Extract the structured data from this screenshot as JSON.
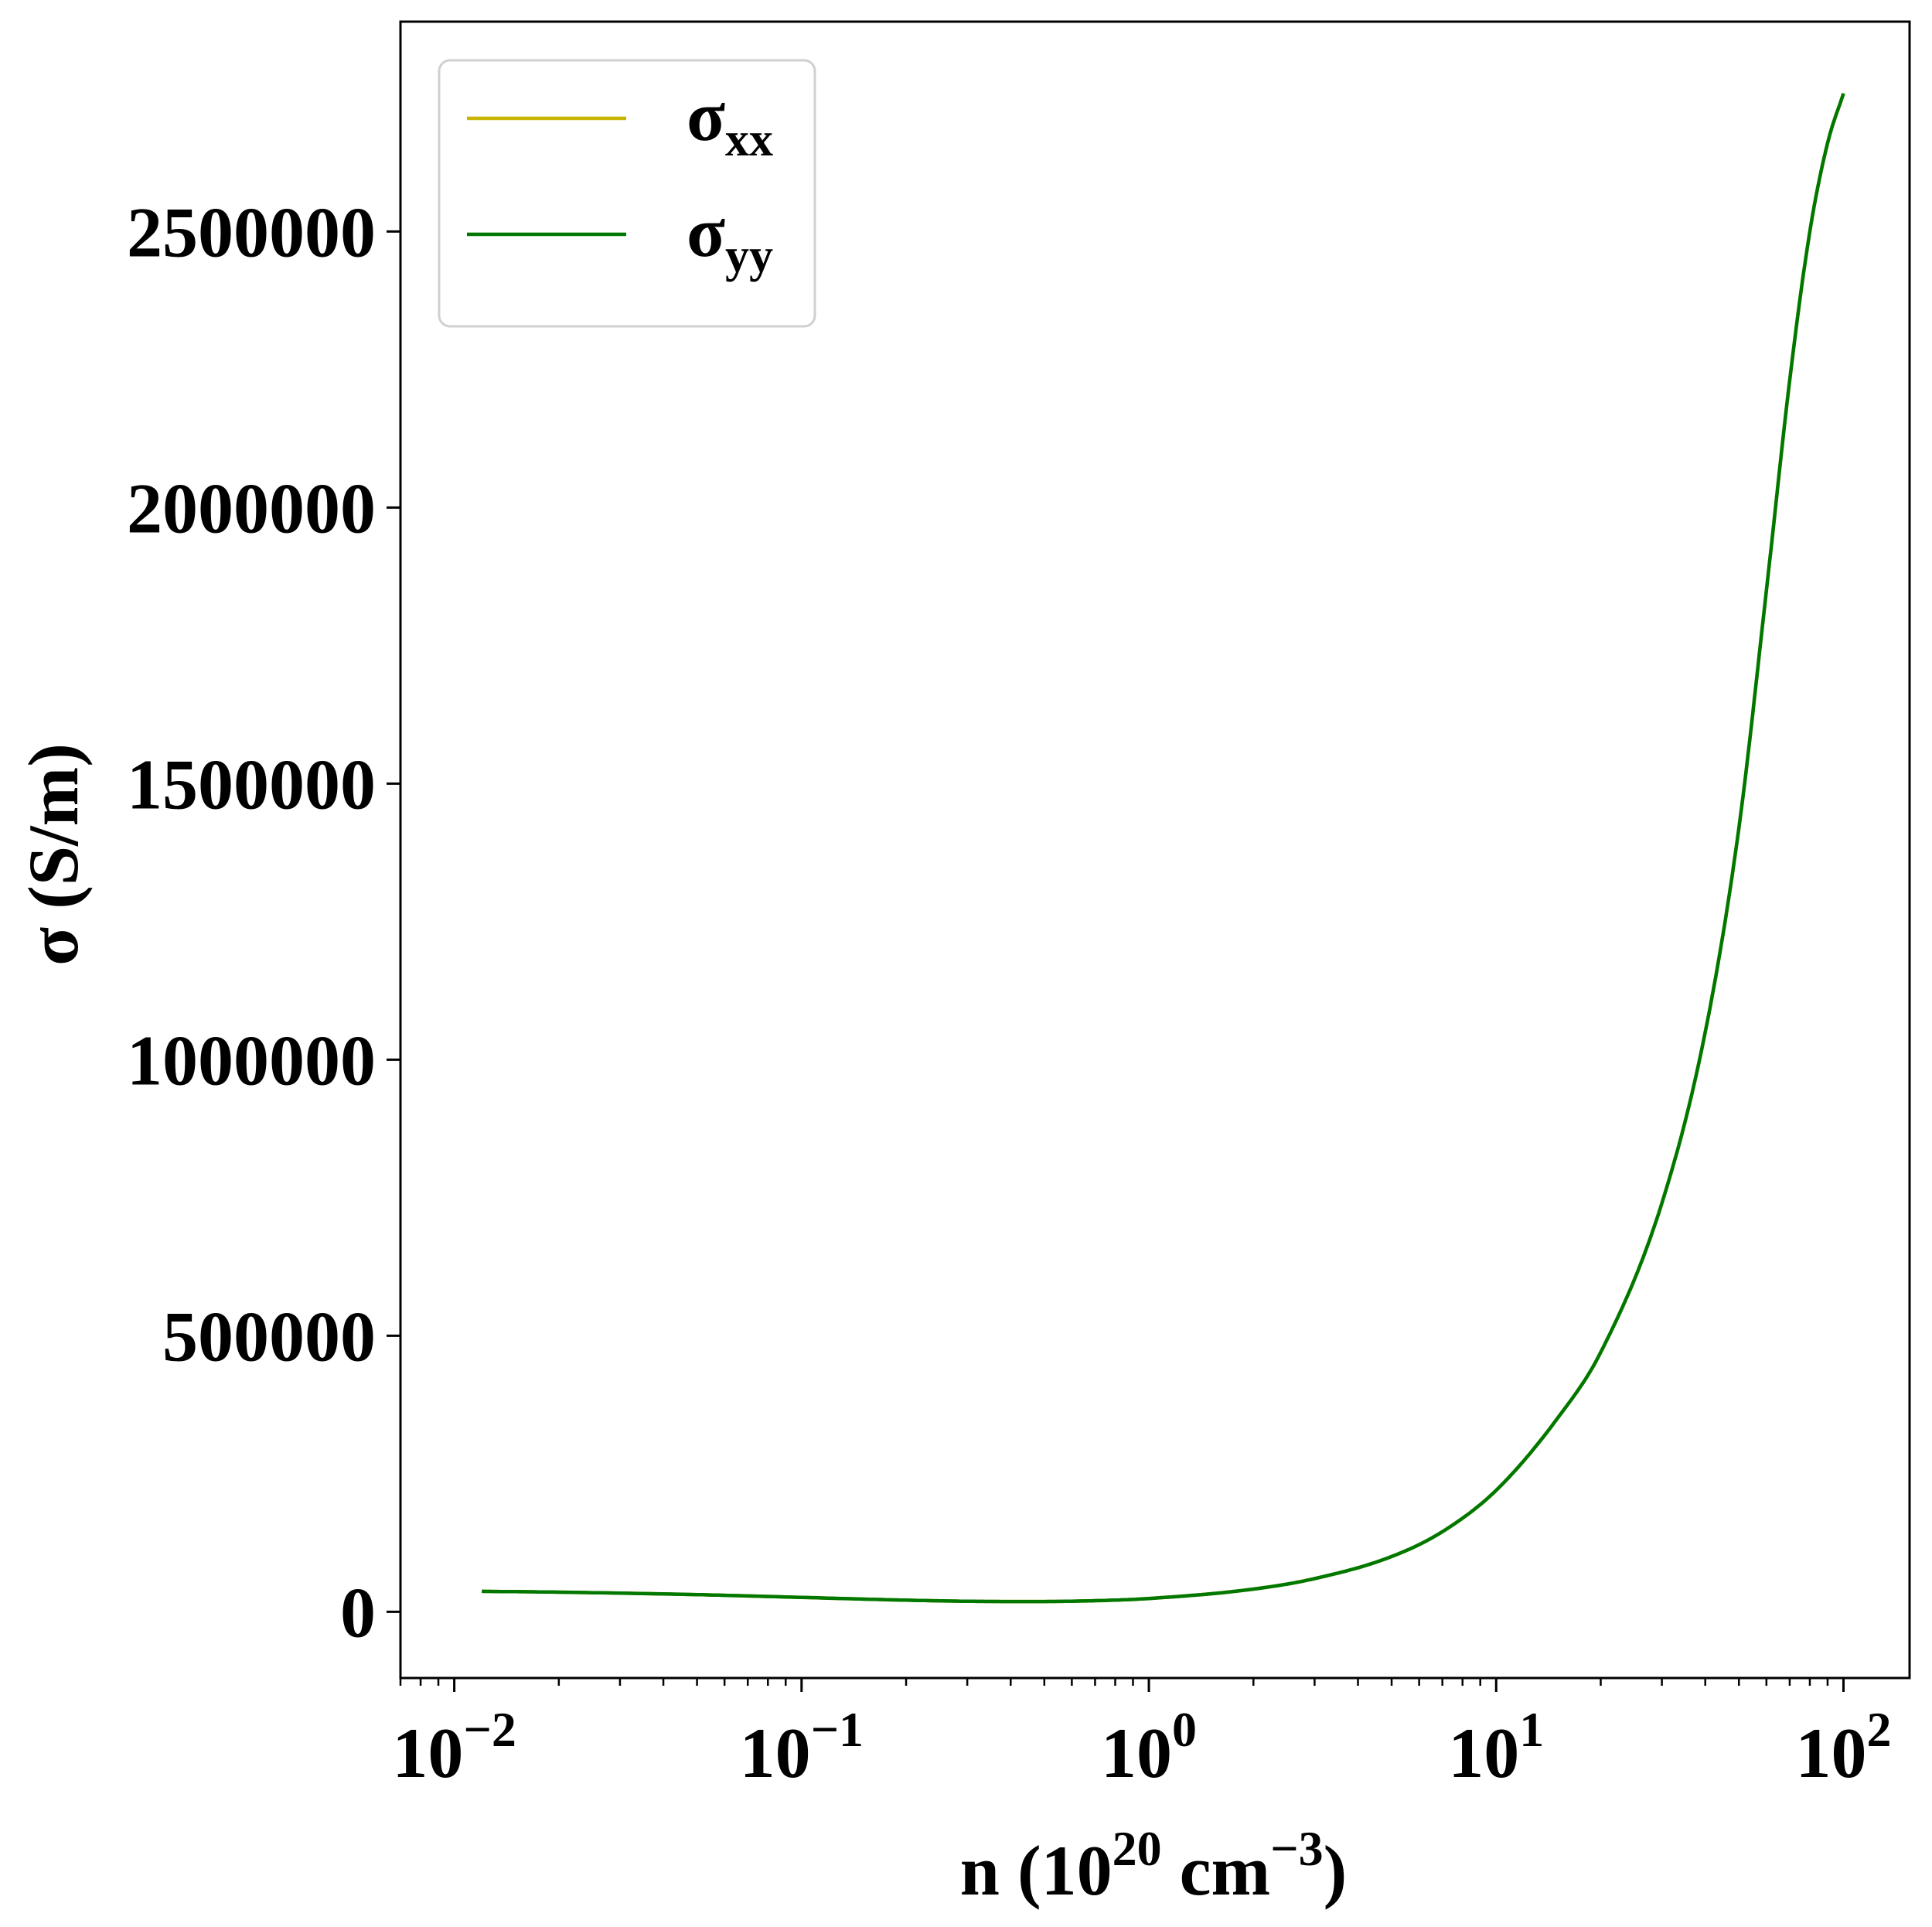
{
  "chart_data": {
    "type": "line",
    "xscale": "log",
    "xlim": [
      0.007,
      155
    ],
    "ylim": [
      -120000,
      2880000
    ],
    "xlabel": {
      "text": "n (10",
      "sup1": "20",
      "mid": " cm",
      "sup2": "−3",
      "end": ")"
    },
    "ylabel": "σ (S/m)",
    "x_ticks": [
      {
        "value": 0.01,
        "base": "10",
        "exp": "−2"
      },
      {
        "value": 0.1,
        "base": "10",
        "exp": "−1"
      },
      {
        "value": 1,
        "base": "10",
        "exp": "0"
      },
      {
        "value": 10,
        "base": "10",
        "exp": "1"
      },
      {
        "value": 100,
        "base": "10",
        "exp": "2"
      }
    ],
    "y_ticks": [
      {
        "value": 0,
        "label": "0"
      },
      {
        "value": 500000,
        "label": "500000"
      },
      {
        "value": 1000000,
        "label": "1000000"
      },
      {
        "value": 1500000,
        "label": "1500000"
      },
      {
        "value": 2000000,
        "label": "2000000"
      },
      {
        "value": 2500000,
        "label": "2500000"
      }
    ],
    "legend": {
      "position": "upper-left",
      "entries": [
        {
          "symbol": "σ",
          "sub": "xx",
          "color": "#c8b400"
        },
        {
          "symbol": "σ",
          "sub": "yy",
          "color": "#007800"
        }
      ]
    },
    "series": [
      {
        "name": "σxx",
        "color": "#c8b400",
        "x": [
          0.012,
          0.02,
          0.05,
          0.1,
          0.2,
          0.3,
          0.45,
          0.7,
          1,
          2,
          3,
          5,
          7,
          10,
          15,
          20,
          30,
          40,
          50,
          60,
          70,
          80,
          90,
          100
        ],
        "y": [
          37000,
          35500,
          31000,
          26000,
          21000,
          19000,
          18500,
          20000,
          24000,
          41000,
          60000,
          100000,
          145000,
          220000,
          350000,
          470000,
          740000,
          1050000,
          1420000,
          1850000,
          2230000,
          2500000,
          2660000,
          2750000
        ]
      },
      {
        "name": "σyy",
        "color": "#007800",
        "x": [
          0.012,
          0.02,
          0.05,
          0.1,
          0.2,
          0.3,
          0.45,
          0.7,
          1,
          2,
          3,
          5,
          7,
          10,
          15,
          20,
          30,
          40,
          50,
          60,
          70,
          80,
          90,
          100
        ],
        "y": [
          37000,
          35500,
          31000,
          26000,
          21000,
          19000,
          18500,
          20000,
          24000,
          41000,
          60000,
          100000,
          145000,
          220000,
          350000,
          470000,
          740000,
          1050000,
          1420000,
          1850000,
          2230000,
          2500000,
          2660000,
          2750000
        ]
      }
    ]
  }
}
